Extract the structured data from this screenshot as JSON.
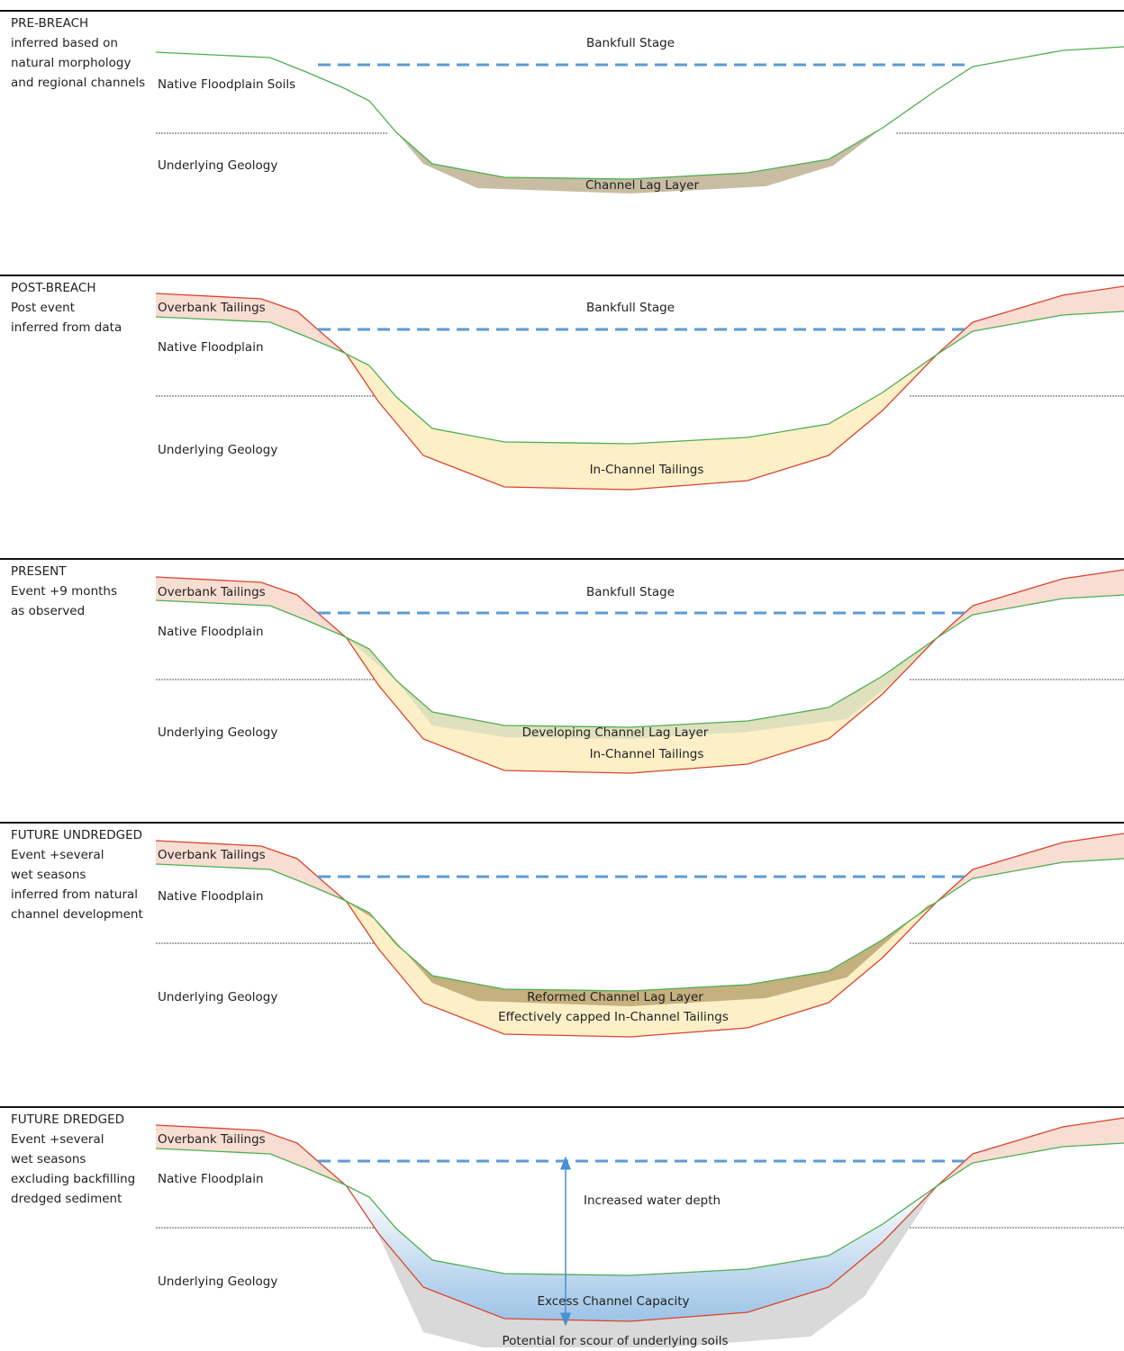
{
  "panels": [
    {
      "heading": [
        "PRE-BREACH",
        "inferred based on",
        "natural morphology",
        "and regional channels"
      ],
      "labels": [
        "Bankfull Stage",
        "Native Floodplain Soils",
        "Underlying Geology",
        "Channel Lag Layer"
      ]
    },
    {
      "heading": [
        "POST-BREACH",
        "Post event",
        "inferred from data"
      ],
      "labels": [
        "Overbank Tailings",
        "Bankfull Stage",
        "Native Floodplain",
        "Underlying Geology",
        "In-Channel Tailings"
      ]
    },
    {
      "heading": [
        "PRESENT",
        "Event +9 months",
        "as observed"
      ],
      "labels": [
        "Overbank Tailings",
        "Bankfull Stage",
        "Native Floodplain",
        "Underlying Geology",
        "Developing Channel Lag Layer",
        "In-Channel Tailings"
      ]
    },
    {
      "heading": [
        "FUTURE UNDREDGED",
        "Event +several",
        "wet seasons",
        "inferred from natural",
        "channel development"
      ],
      "labels": [
        "Overbank Tailings",
        "Native Floodplain",
        "Underlying Geology",
        "Reformed Channel Lag Layer",
        "Effectively capped In-Channel Tailings"
      ]
    },
    {
      "heading": [
        "FUTURE DREDGED",
        "Event +several",
        "wet seasons",
        "excluding backfilling",
        "dredged sediment"
      ],
      "labels": [
        "Overbank Tailings",
        "Native Floodplain",
        "Increased water depth",
        "Underlying Geology",
        "Excess Channel Capacity",
        "Potential for scour of underlying soils"
      ]
    }
  ]
}
